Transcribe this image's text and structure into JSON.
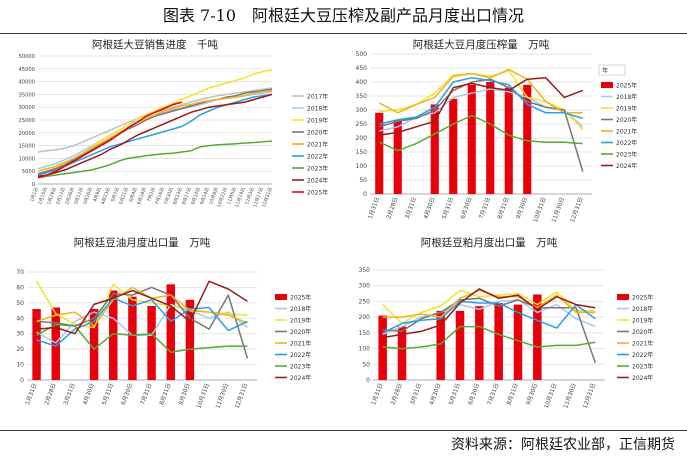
{
  "figure": {
    "title": "图表 7-10　阿根廷大豆压榨及副产品月度出口情况",
    "source": "资料来源：阿根廷农业部，正信期货"
  },
  "colors": {
    "2018年": "#a6c8f0",
    "2019年": "#f5e12a",
    "2020年": "#777777",
    "2021年": "#f2b31e",
    "2022年": "#28a0e0",
    "2023年": "#55aa33",
    "2024年": "#9b1b1b",
    "2025年": "#e8000b",
    "2017年": "#c0c0c0"
  },
  "chart_data": [
    {
      "id": "c1",
      "type": "line",
      "title": "阿根廷大豆销售进度　千吨",
      "ylim": [
        0,
        50000
      ],
      "yticks": [
        0,
        5000,
        10000,
        15000,
        20000,
        25000,
        30000,
        35000,
        40000,
        45000,
        50000
      ],
      "x": [
        "1月1日",
        "1月15日",
        "1月29日",
        "2月12日",
        "2月26日",
        "3月12日",
        "3月26日",
        "4月9日",
        "4月23日",
        "5月7日",
        "5月21日",
        "6月4日",
        "6月18日",
        "7月2日",
        "7月16日",
        "7月30日",
        "8月13日",
        "8月27日",
        "9月10日",
        "9月24日",
        "10月8日",
        "10月22日",
        "11月5日",
        "11月19日",
        "12月3日",
        "12月17日",
        "12月31日"
      ],
      "legend_position": "right",
      "series": [
        {
          "name": "2017年",
          "values": [
            12500,
            13000,
            13400,
            14000,
            15000,
            16500,
            18000,
            19500,
            21000,
            22500,
            24000,
            25500,
            27000,
            28000,
            29000,
            30000,
            31000,
            32000,
            33000,
            33800,
            34500,
            35000,
            35500,
            36000,
            36500,
            37000,
            37500
          ]
        },
        {
          "name": "2018年",
          "values": [
            6000,
            7000,
            8000,
            9500,
            11000,
            13000,
            15000,
            17000,
            19000,
            21000,
            23000,
            24500,
            26000,
            27000,
            28000,
            29000,
            29500,
            30000,
            31000,
            32000,
            33000,
            33500,
            34000,
            34500,
            35000,
            35500,
            36000
          ]
        },
        {
          "name": "2019年",
          "values": [
            4000,
            5000,
            6500,
            8000,
            10000,
            12000,
            14500,
            17000,
            19000,
            21000,
            23000,
            25500,
            27000,
            28500,
            30000,
            31500,
            33000,
            34500,
            36000,
            37500,
            38500,
            39500,
            40500,
            41500,
            43000,
            44000,
            44500
          ]
        },
        {
          "name": "2020年",
          "values": [
            4000,
            5000,
            6000,
            7500,
            9500,
            11500,
            13500,
            15500,
            17500,
            19500,
            21500,
            23000,
            25000,
            26500,
            27500,
            28500,
            29500,
            30500,
            31500,
            32500,
            33000,
            34000,
            34500,
            35500,
            36000,
            36500,
            37000
          ]
        },
        {
          "name": "2021年",
          "values": [
            5000,
            6000,
            7000,
            8500,
            10000,
            12000,
            14000,
            16000,
            18000,
            20000,
            22000,
            24000,
            25500,
            27000,
            28500,
            29500,
            30500,
            31000,
            32000,
            32500,
            33000,
            33500,
            34000,
            34500,
            35500,
            36000,
            36500
          ]
        },
        {
          "name": "2022年",
          "values": [
            3500,
            4500,
            5500,
            7000,
            8500,
            10000,
            11500,
            13000,
            14500,
            15500,
            16500,
            17500,
            18500,
            19500,
            20500,
            21500,
            22500,
            24500,
            27000,
            28500,
            30000,
            31000,
            32000,
            33000,
            34000,
            34500,
            35000
          ]
        },
        {
          "name": "2023年",
          "values": [
            2500,
            3000,
            3500,
            4000,
            4500,
            5000,
            5500,
            6500,
            7500,
            9000,
            10000,
            10500,
            11000,
            11500,
            11800,
            12000,
            12500,
            13000,
            14500,
            15000,
            15300,
            15500,
            15700,
            16000,
            16200,
            16500,
            16800
          ]
        },
        {
          "name": "2024年",
          "values": [
            3000,
            3500,
            4500,
            5500,
            7000,
            8500,
            10000,
            11500,
            13500,
            15000,
            17000,
            19000,
            20500,
            22000,
            23500,
            25000,
            26500,
            28000,
            29000,
            30000,
            30500,
            31000,
            31500,
            32000,
            33000,
            34000,
            35000
          ]
        },
        {
          "name": "2025年",
          "values": [
            2500,
            3500,
            5000,
            7000,
            9000,
            11000,
            13000,
            15000,
            17000,
            19500,
            22000,
            24000,
            26500,
            28000,
            29500,
            31000,
            32000,
            null,
            null,
            null,
            null,
            null,
            null,
            null,
            null,
            null,
            null
          ]
        }
      ]
    },
    {
      "id": "c2",
      "type": "bar+line",
      "title": "阿根廷大豆月度压榨量　万吨",
      "ylim": [
        0,
        500
      ],
      "yticks": [
        0,
        50,
        100,
        150,
        200,
        250,
        300,
        350,
        400,
        450,
        500
      ],
      "x": [
        "1月31日",
        "2月28日",
        "3月31日",
        "4月30日",
        "5月31日",
        "6月30日",
        "7月31日",
        "8月31日",
        "9月30日",
        "10月31日",
        "11月30日",
        "12月31日"
      ],
      "legend_position": "right",
      "legend_header": "年",
      "bars": {
        "name": "2025年",
        "values": [
          290,
          265,
          null,
          320,
          340,
          390,
          400,
          380,
          390,
          null,
          null,
          null
        ]
      },
      "series": [
        {
          "name": "2018年",
          "values": [
            225,
            240,
            275,
            290,
            345,
            360,
            375,
            365,
            345,
            310,
            300,
            240
          ]
        },
        {
          "name": "2019年",
          "values": [
            295,
            300,
            320,
            360,
            425,
            430,
            420,
            440,
            345,
            330,
            300,
            230
          ]
        },
        {
          "name": "2020年",
          "values": [
            240,
            260,
            270,
            300,
            370,
            400,
            410,
            380,
            330,
            310,
            300,
            80
          ]
        },
        {
          "name": "2021年",
          "values": [
            325,
            290,
            320,
            345,
            420,
            430,
            415,
            445,
            410,
            330,
            290,
            290
          ]
        },
        {
          "name": "2022年",
          "values": [
            250,
            265,
            275,
            310,
            400,
            415,
            405,
            390,
            320,
            290,
            290,
            270
          ]
        },
        {
          "name": "2023年",
          "values": [
            185,
            155,
            180,
            215,
            250,
            280,
            250,
            210,
            190,
            185,
            185,
            180
          ]
        },
        {
          "name": "2024年",
          "values": [
            210,
            220,
            240,
            260,
            380,
            395,
            380,
            370,
            410,
            415,
            345,
            370
          ]
        }
      ]
    },
    {
      "id": "c3",
      "type": "bar+line",
      "title": "阿根廷豆油月度出口量　万吨",
      "ylim": [
        0,
        70
      ],
      "yticks": [
        0,
        10,
        20,
        30,
        40,
        50,
        60,
        70
      ],
      "x": [
        "1月31日",
        "2月28日",
        "3月31日",
        "4月30日",
        "5月31日",
        "6月30日",
        "7月31日",
        "8月31日",
        "9月30日",
        "10月31日",
        "11月30日",
        "12月31日"
      ],
      "legend_position": "right",
      "bars": {
        "name": "2025年",
        "values": [
          46,
          47,
          null,
          46,
          58,
          54,
          48,
          62,
          52,
          null,
          null,
          null
        ]
      },
      "series": [
        {
          "name": "2018年",
          "values": [
            31,
            24,
            38,
            44,
            40,
            29,
            29,
            49,
            45,
            40,
            44,
            34
          ]
        },
        {
          "name": "2019年",
          "values": [
            64,
            43,
            36,
            34,
            62,
            52,
            50,
            48,
            46,
            44,
            43,
            42
          ]
        },
        {
          "name": "2020年",
          "values": [
            38,
            37,
            35,
            40,
            56,
            55,
            60,
            55,
            40,
            33,
            55,
            14
          ]
        },
        {
          "name": "2021年",
          "values": [
            38,
            42,
            44,
            35,
            52,
            60,
            53,
            55,
            45,
            44,
            42,
            37
          ]
        },
        {
          "name": "2022年",
          "values": [
            26,
            22,
            33,
            38,
            53,
            48,
            52,
            38,
            46,
            47,
            32,
            38
          ]
        },
        {
          "name": "2023年",
          "values": [
            29,
            36,
            35,
            20,
            30,
            29,
            30,
            18,
            20,
            21,
            22,
            22
          ]
        },
        {
          "name": "2024年",
          "values": [
            33,
            34,
            30,
            49,
            53,
            58,
            53,
            48,
            38,
            64,
            59,
            51
          ]
        }
      ]
    },
    {
      "id": "c4",
      "type": "bar+line",
      "title": "阿根廷豆粕月度出口量　万吨",
      "ylim": [
        0,
        350
      ],
      "yticks": [
        0,
        50,
        100,
        150,
        200,
        250,
        300,
        350
      ],
      "x": [
        "1月31日",
        "2月28日",
        "3月31日",
        "4月30日",
        "5月31日",
        "6月30日",
        "7月31日",
        "8月31日",
        "9月30日",
        "10月31日",
        "11月30日",
        "12月31日"
      ],
      "legend_position": "right",
      "bars": {
        "name": "2025年",
        "values": [
          205,
          170,
          null,
          220,
          220,
          235,
          245,
          240,
          272,
          null,
          null,
          null
        ]
      },
      "series": [
        {
          "name": "2018年",
          "values": [
            145,
            170,
            200,
            215,
            240,
            225,
            250,
            255,
            215,
            240,
            195,
            170
          ]
        },
        {
          "name": "2019年",
          "values": [
            240,
            180,
            215,
            235,
            285,
            265,
            270,
            275,
            240,
            280,
            220,
            220
          ]
        },
        {
          "name": "2020年",
          "values": [
            160,
            155,
            195,
            215,
            255,
            260,
            235,
            255,
            230,
            230,
            230,
            55
          ]
        },
        {
          "name": "2021年",
          "values": [
            200,
            200,
            210,
            200,
            260,
            285,
            265,
            265,
            230,
            270,
            215,
            215
          ]
        },
        {
          "name": "2022年",
          "values": [
            150,
            180,
            190,
            195,
            250,
            245,
            245,
            215,
            190,
            165,
            240,
            195
          ]
        },
        {
          "name": "2023年",
          "values": [
            105,
            100,
            105,
            115,
            170,
            170,
            145,
            125,
            105,
            110,
            110,
            120
          ]
        },
        {
          "name": "2024年",
          "values": [
            135,
            145,
            155,
            175,
            245,
            290,
            260,
            270,
            225,
            265,
            240,
            230
          ]
        }
      ]
    }
  ]
}
